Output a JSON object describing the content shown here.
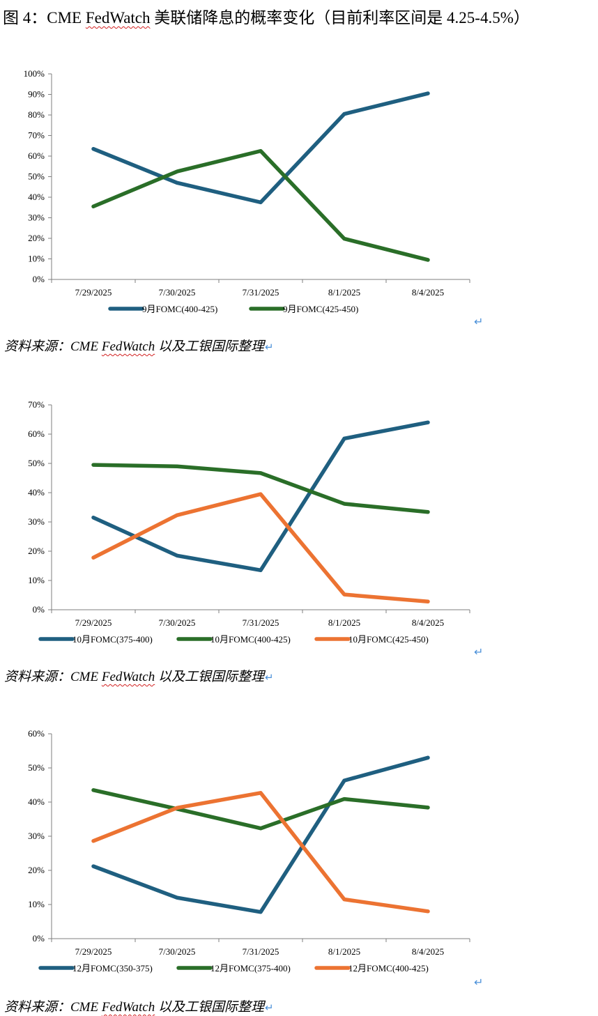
{
  "title": {
    "prefix": "图 4：CME ",
    "fedwatch": "FedWatch",
    "suffix": " 美联储降息的概率变化（目前利率区间是 4.25-4.5%）"
  },
  "source": {
    "prefix": "资料来源：CME ",
    "fedwatch": "FedWatch",
    "suffix": " 以及工银国际整理",
    "return_glyph": "↵"
  },
  "colors": {
    "blue": "#1f5f80",
    "green": "#2a6e28",
    "orange": "#ec7332",
    "axis": "#7f7f7f"
  },
  "chart_data": [
    {
      "type": "line",
      "categories": [
        "7/29/2025",
        "7/30/2025",
        "7/31/2025",
        "8/1/2025",
        "8/4/2025"
      ],
      "ylim": [
        0,
        100
      ],
      "yticks": [
        "0%",
        "10%",
        "20%",
        "30%",
        "40%",
        "50%",
        "60%",
        "70%",
        "80%",
        "90%",
        "100%"
      ],
      "series": [
        {
          "name": "9月FOMC(400-425)",
          "color": "#1f5f80",
          "values": [
            63.5,
            47,
            37.5,
            80.5,
            90.5
          ]
        },
        {
          "name": "9月FOMC(425-450)",
          "color": "#2a6e28",
          "values": [
            35.5,
            52.5,
            62.5,
            19.8,
            9.5
          ]
        }
      ]
    },
    {
      "type": "line",
      "categories": [
        "7/29/2025",
        "7/30/2025",
        "7/31/2025",
        "8/1/2025",
        "8/4/2025"
      ],
      "ylim": [
        0,
        70
      ],
      "yticks": [
        "0%",
        "10%",
        "20%",
        "30%",
        "40%",
        "50%",
        "60%",
        "70%"
      ],
      "series": [
        {
          "name": "10月FOMC(375-400)",
          "color": "#1f5f80",
          "values": [
            31.5,
            18.5,
            13.5,
            58.5,
            64
          ]
        },
        {
          "name": "10月FOMC(400-425)",
          "color": "#2a6e28",
          "values": [
            49.5,
            49,
            46.7,
            36.2,
            33.4
          ]
        },
        {
          "name": "10月FOMC(425-450)",
          "color": "#ec7332",
          "values": [
            17.8,
            32.3,
            39.5,
            5.2,
            2.8
          ]
        }
      ]
    },
    {
      "type": "line",
      "categories": [
        "7/29/2025",
        "7/30/2025",
        "7/31/2025",
        "8/1/2025",
        "8/4/2025"
      ],
      "ylim": [
        0,
        60
      ],
      "yticks": [
        "0%",
        "10%",
        "20%",
        "30%",
        "40%",
        "50%",
        "60%"
      ],
      "series": [
        {
          "name": "12月FOMC(350-375)",
          "color": "#1f5f80",
          "values": [
            21.2,
            12,
            7.8,
            46.3,
            53
          ]
        },
        {
          "name": "12月FOMC(375-400)",
          "color": "#2a6e28",
          "values": [
            43.5,
            38,
            32.3,
            40.9,
            38.4
          ]
        },
        {
          "name": "12月FOMC(400-425)",
          "color": "#ec7332",
          "values": [
            28.6,
            38.3,
            42.7,
            11.5,
            8
          ]
        }
      ]
    }
  ]
}
